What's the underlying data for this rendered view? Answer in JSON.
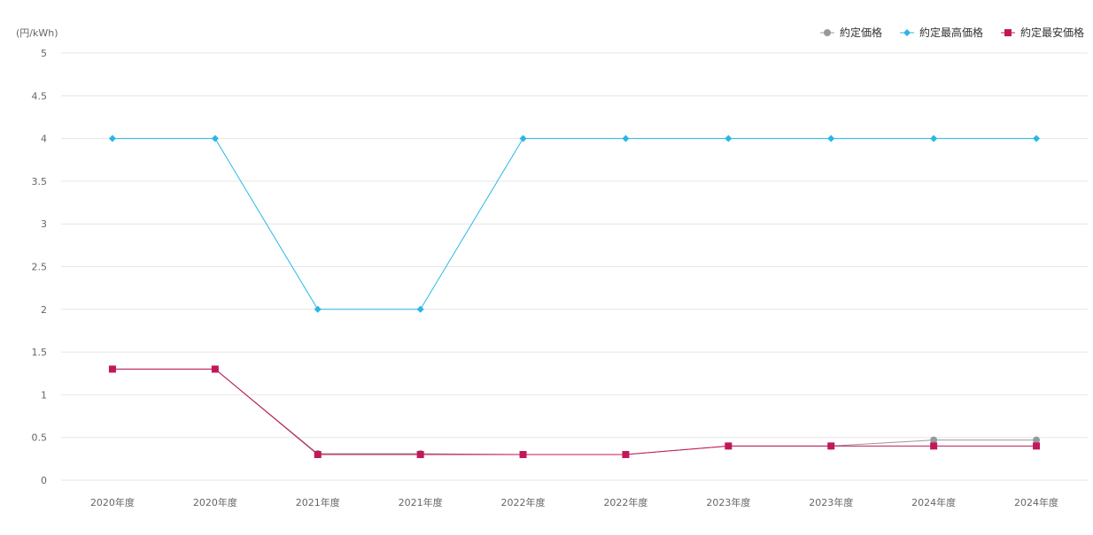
{
  "chart_data": {
    "type": "line",
    "ylabel": "(円/kWh)",
    "ylim": [
      0,
      5
    ],
    "ytick_step": 0.5,
    "yticks": [
      "0",
      "0.5",
      "1",
      "1.5",
      "2",
      "2.5",
      "3",
      "3.5",
      "4",
      "4.5",
      "5"
    ],
    "grid": true,
    "legend_position": "top-right",
    "categories": [
      "2020年度",
      "2020年度",
      "2021年度",
      "2021年度",
      "2022年度",
      "2022年度",
      "2023年度",
      "2023年度",
      "2024年度",
      "2024年度"
    ],
    "series": [
      {
        "name": "約定価格",
        "color": "#999999",
        "marker": "circle",
        "values": [
          1.3,
          1.3,
          0.31,
          0.31,
          0.3,
          0.3,
          0.4,
          0.4,
          0.47,
          0.47
        ]
      },
      {
        "name": "約定最高価格",
        "color": "#29b6e8",
        "marker": "diamond",
        "values": [
          4,
          4,
          2,
          2,
          4,
          4,
          4,
          4,
          4,
          4
        ]
      },
      {
        "name": "約定最安価格",
        "color": "#c2185b",
        "marker": "square",
        "values": [
          1.3,
          1.3,
          0.3,
          0.3,
          0.3,
          0.3,
          0.4,
          0.4,
          0.4,
          0.4
        ]
      }
    ]
  }
}
